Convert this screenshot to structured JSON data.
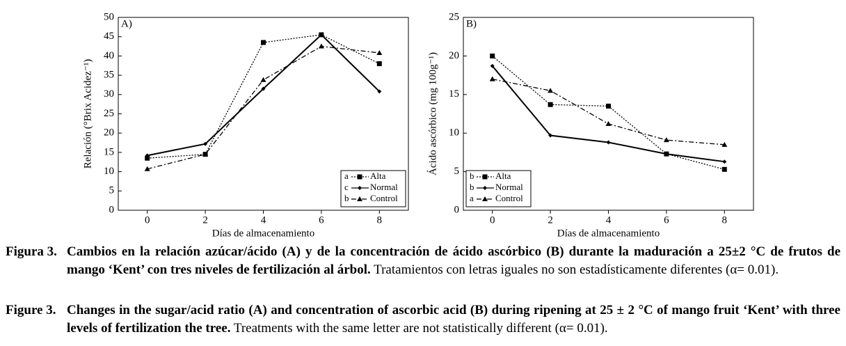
{
  "chart_data": [
    {
      "type": "line",
      "panel_label": "A)",
      "x_label": "Días de almacenamiento",
      "y_label": "Relación (°Brix Acidez⁻¹)",
      "x": [
        0,
        2,
        4,
        6,
        8
      ],
      "xlim": [
        -1,
        9
      ],
      "xticks": [
        0,
        2,
        4,
        6,
        8
      ],
      "ylim": [
        0,
        50
      ],
      "yticks": [
        0,
        5,
        10,
        15,
        20,
        25,
        30,
        35,
        40,
        45,
        50
      ],
      "legend": "lower right",
      "series": [
        {
          "name": "Alta",
          "letter": "a",
          "color": "#000000",
          "marker": "square",
          "dash": "dotted",
          "values": [
            13.5,
            14.5,
            43.5,
            45.5,
            38
          ]
        },
        {
          "name": "Normal",
          "letter": "c",
          "color": "#000000",
          "marker": "diamond",
          "dash": "solid",
          "values": [
            14.2,
            17.2,
            31.5,
            45.5,
            30.8
          ]
        },
        {
          "name": "Control",
          "letter": "b",
          "color": "#000000",
          "marker": "triangle",
          "dash": "dashdot",
          "values": [
            10.7,
            14.5,
            33.8,
            42.5,
            40.8
          ]
        }
      ]
    },
    {
      "type": "line",
      "panel_label": "B)",
      "x_label": "Días de almacenamiento",
      "y_label": "Ácido ascórbico (mg 100g⁻¹)",
      "x": [
        0,
        2,
        4,
        6,
        8
      ],
      "xlim": [
        -1,
        9
      ],
      "xticks": [
        0,
        2,
        4,
        6,
        8
      ],
      "ylim": [
        0,
        25
      ],
      "yticks": [
        0,
        5,
        10,
        15,
        20,
        25
      ],
      "legend": "lower left",
      "series": [
        {
          "name": "Alta",
          "letter": "b",
          "color": "#000000",
          "marker": "square",
          "dash": "dotted",
          "values": [
            20,
            13.7,
            13.5,
            7.3,
            5.3
          ]
        },
        {
          "name": "Normal",
          "letter": "b",
          "color": "#000000",
          "marker": "diamond",
          "dash": "solid",
          "values": [
            18.7,
            9.7,
            8.8,
            7.3,
            6.3
          ]
        },
        {
          "name": "Control",
          "letter": "a",
          "color": "#000000",
          "marker": "triangle",
          "dash": "dashdot",
          "values": [
            17,
            15.5,
            11.2,
            9.1,
            8.5
          ]
        }
      ]
    }
  ],
  "captions": [
    {
      "label": "Figura 3.",
      "bold": "Cambios en la relación azúcar/ácido (A) y de la concentración de ácido ascórbico (B) durante la maduración a 25±2 °C de frutos de mango ‘Kent’ con tres niveles de fertilización al árbol.",
      "text": "Tratamientos con letras iguales no son estadísticamente diferentes (α= 0.01)."
    },
    {
      "label": "Figure 3.",
      "bold": "Changes in the sugar/acid ratio (A) and concentration of ascorbic acid (B) during ripening at 25 ± 2 °C of mango fruit ‘Kent’ with three levels of fertilization the tree.",
      "text": "Treatments with the same letter are not statistically different (α= 0.01)."
    }
  ]
}
